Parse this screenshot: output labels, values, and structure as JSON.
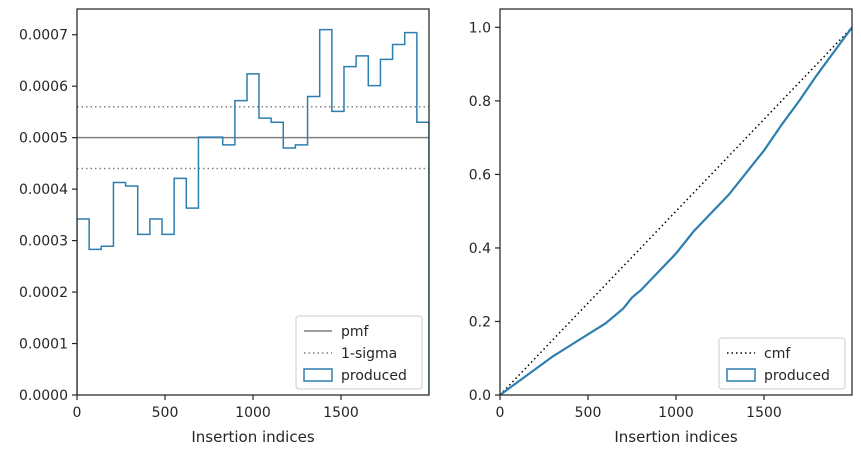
{
  "chart_data": [
    {
      "type": "histogram-step",
      "xlabel": "Insertion indices",
      "ylabel": "",
      "xlim": [
        0,
        2000
      ],
      "ylim": [
        0,
        0.00075
      ],
      "xticks": [
        0,
        500,
        1000,
        1500
      ],
      "xtick_labels": [
        "0",
        "500",
        "1000",
        "1500"
      ],
      "yticks": [
        0,
        0.0001,
        0.0002,
        0.0003,
        0.0004,
        0.0005,
        0.0006,
        0.0007
      ],
      "ytick_labels": [
        "0.0000",
        "0.0001",
        "0.0002",
        "0.0003",
        "0.0004",
        "0.0005",
        "0.0006",
        "0.0007"
      ],
      "grid": false,
      "legend_position": "lower-right",
      "reference_lines": [
        {
          "name": "pmf",
          "y": 0.0005,
          "style": "solid",
          "color": "#808080"
        },
        {
          "name": "1-sigma",
          "y": 0.00056,
          "style": "dotted",
          "color": "#808080"
        },
        {
          "name": "1-sigma-lower",
          "y": 0.00044,
          "style": "dotted",
          "color": "#808080"
        }
      ],
      "series": [
        {
          "name": "produced",
          "color": "#2e7fb0",
          "bin_edges": [
            0,
            69,
            138,
            207,
            276,
            345,
            414,
            483,
            552,
            621,
            690,
            759,
            828,
            897,
            966,
            1034,
            1103,
            1172,
            1241,
            1310,
            1379,
            1448,
            1517,
            1586,
            1655,
            1724,
            1793,
            1862,
            1931,
            2000
          ],
          "values": [
            0.000342,
            0.000283,
            0.000289,
            0.000413,
            0.000406,
            0.000312,
            0.000342,
            0.000312,
            0.000421,
            0.000363,
            0.000501,
            0.000501,
            0.000486,
            0.000572,
            0.000624,
            0.000538,
            0.00053,
            0.00048,
            0.000486,
            0.00058,
            0.00071,
            0.000551,
            0.000638,
            0.000659,
            0.000601,
            0.000652,
            0.000681,
            0.000704,
            0.00053
          ]
        }
      ],
      "legend": [
        "pmf",
        "1-sigma",
        "produced"
      ]
    },
    {
      "type": "line",
      "xlabel": "Insertion indices",
      "ylabel": "",
      "xlim": [
        0,
        2000
      ],
      "ylim": [
        0,
        1.05
      ],
      "xticks": [
        0,
        500,
        1000,
        1500
      ],
      "xtick_labels": [
        "0",
        "500",
        "1000",
        "1500"
      ],
      "yticks": [
        0,
        0.2,
        0.4,
        0.6,
        0.8,
        1.0
      ],
      "ytick_labels": [
        "0.0",
        "0.2",
        "0.4",
        "0.6",
        "0.8",
        "1.0"
      ],
      "grid": false,
      "legend_position": "lower-right",
      "series": [
        {
          "name": "cmf",
          "style": "dotted",
          "color": "#000000",
          "x": [
            0,
            2000
          ],
          "y": [
            0,
            1.0
          ]
        },
        {
          "name": "produced",
          "style": "solid",
          "color": "#2e7fb0",
          "x": [
            0,
            100,
            200,
            300,
            400,
            500,
            600,
            700,
            750,
            800,
            900,
            1000,
            1100,
            1200,
            1300,
            1400,
            1500,
            1600,
            1700,
            1800,
            1900,
            2000
          ],
          "y": [
            0,
            0.035,
            0.07,
            0.105,
            0.135,
            0.165,
            0.195,
            0.235,
            0.265,
            0.285,
            0.335,
            0.385,
            0.445,
            0.495,
            0.545,
            0.605,
            0.665,
            0.735,
            0.8,
            0.87,
            0.935,
            1.0
          ]
        }
      ],
      "legend": [
        "cmf",
        "produced"
      ]
    }
  ]
}
